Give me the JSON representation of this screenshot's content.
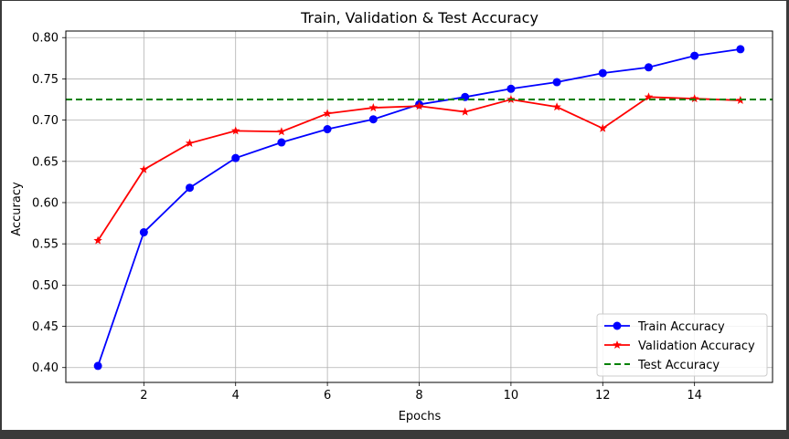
{
  "chart_data": {
    "type": "line",
    "title": "Train, Validation & Test Accuracy",
    "xlabel": "Epochs",
    "ylabel": "Accuracy",
    "xlim": [
      0.3,
      15.7
    ],
    "ylim": [
      0.382,
      0.808
    ],
    "xticks": [
      2,
      4,
      6,
      8,
      10,
      12,
      14
    ],
    "yticks": [
      0.4,
      0.45,
      0.5,
      0.55,
      0.6,
      0.65,
      0.7,
      0.75,
      0.8
    ],
    "grid": true,
    "legend_position": "lower-right",
    "x": [
      1,
      2,
      3,
      4,
      5,
      6,
      7,
      8,
      9,
      10,
      11,
      12,
      13,
      14,
      15
    ],
    "series": [
      {
        "name": "Train Accuracy",
        "color": "#0000ff",
        "marker": "circle",
        "linestyle": "solid",
        "values": [
          0.402,
          0.564,
          0.618,
          0.654,
          0.673,
          0.689,
          0.701,
          0.719,
          0.728,
          0.738,
          0.746,
          0.757,
          0.764,
          0.778,
          0.786
        ]
      },
      {
        "name": "Validation Accuracy",
        "color": "#ff0000",
        "marker": "star",
        "linestyle": "solid",
        "values": [
          0.554,
          0.64,
          0.672,
          0.687,
          0.686,
          0.708,
          0.715,
          0.717,
          0.71,
          0.725,
          0.716,
          0.69,
          0.728,
          0.726,
          0.724
        ]
      },
      {
        "name": "Test Accuracy",
        "color": "#008000",
        "marker": "none",
        "linestyle": "dashed",
        "hline": 0.725
      }
    ]
  }
}
